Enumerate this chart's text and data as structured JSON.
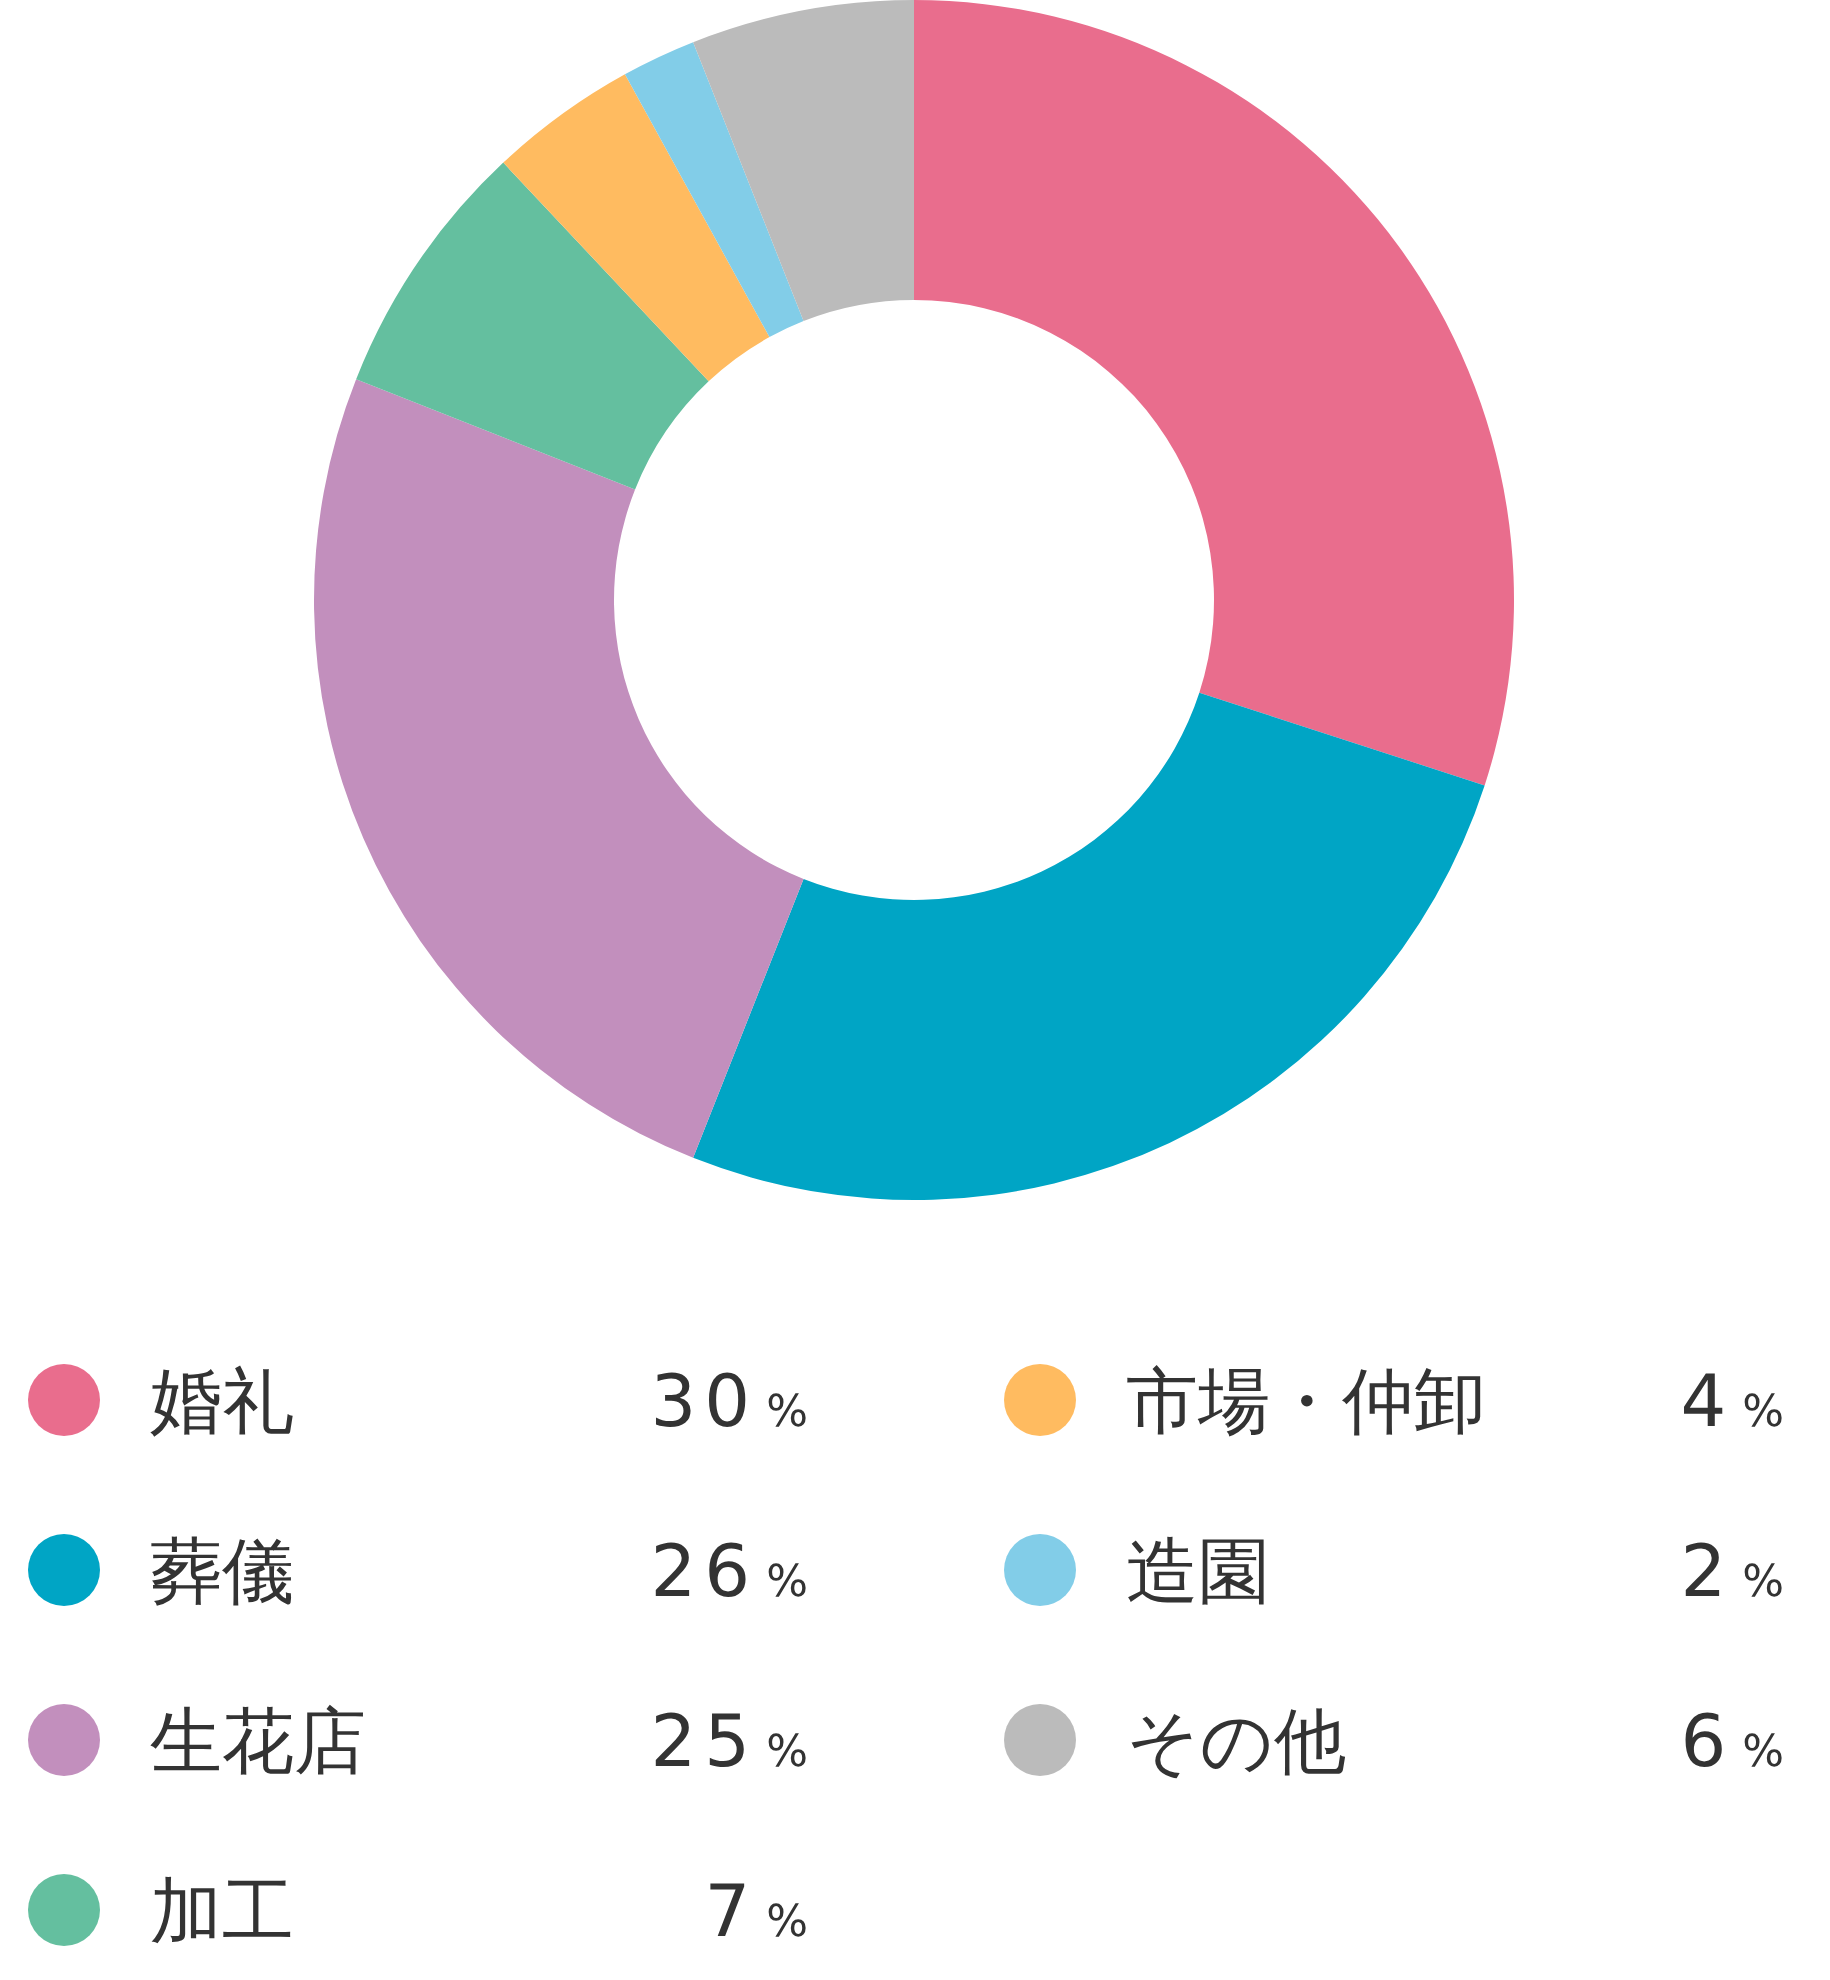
{
  "chart_data": {
    "type": "donut",
    "categories": [
      "婚礼",
      "葬儀",
      "生花店",
      "加工",
      "市場・仲卸",
      "造園",
      "その他"
    ],
    "values": [
      30,
      26,
      25,
      7,
      4,
      2,
      6
    ],
    "colors": [
      "#e96d8d",
      "#00a5c5",
      "#c28fbd",
      "#64bf9f",
      "#ffbb60",
      "#82cde8",
      "#bbbbbb"
    ],
    "value_labels": [
      "30%",
      "26%",
      "25%",
      "7%",
      "4%",
      "2%",
      "6%"
    ],
    "legend": "bottom"
  }
}
